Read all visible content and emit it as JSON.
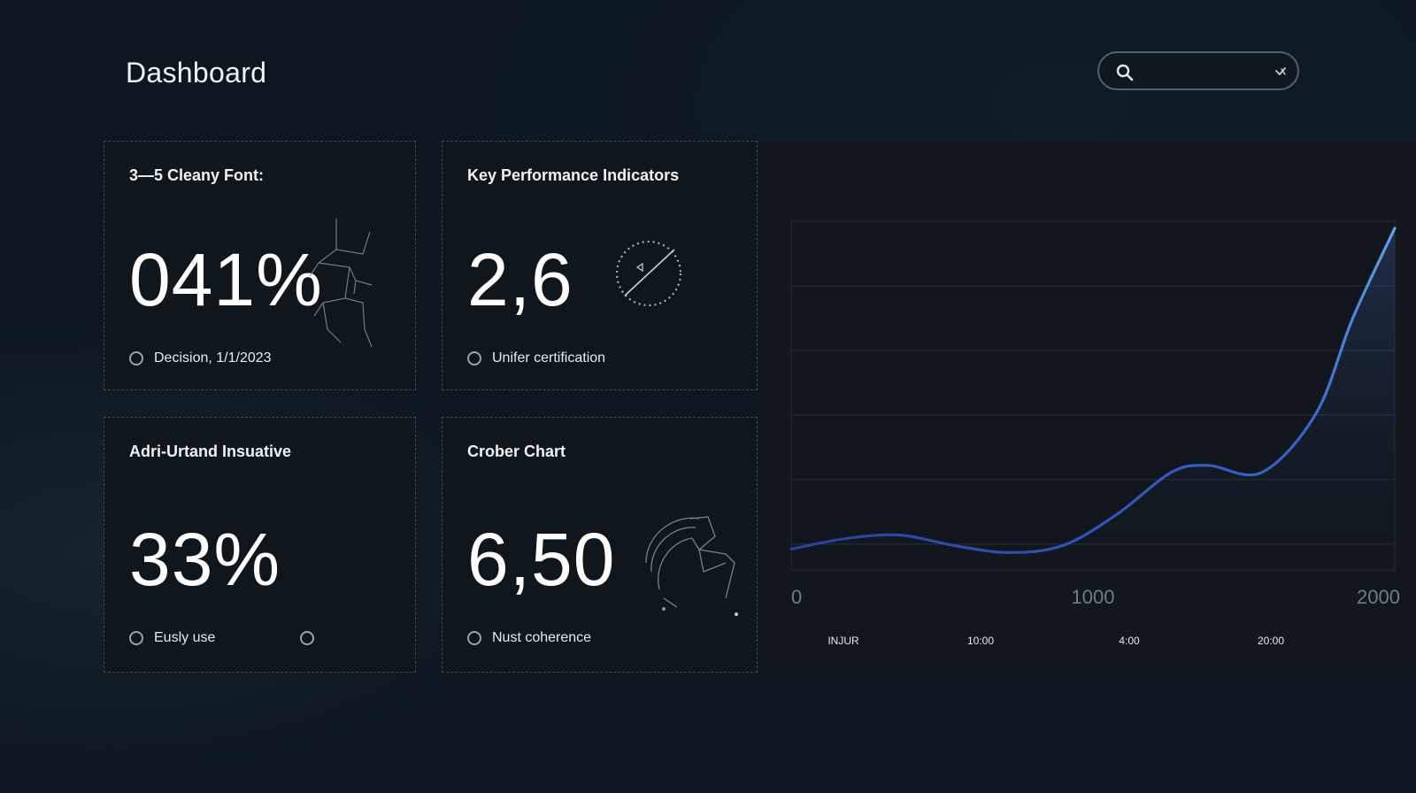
{
  "header": {
    "title": "Dashboard",
    "search": {
      "placeholder": "",
      "value": ""
    }
  },
  "cards": [
    {
      "title": "3—5 Cleany Font:",
      "value": "041%",
      "footer": "Decision, 1/1/2023"
    },
    {
      "title": "Key Performance Indicators",
      "value": "2,6",
      "footer": "Unifer certification"
    },
    {
      "title": "Adri-Urtand Insuative",
      "value": "33%",
      "footer": "Eusly use"
    },
    {
      "title": "Crober Chart",
      "value": "6,50",
      "footer": "Nust coherence"
    }
  ],
  "colors": {
    "background": "#0e171f",
    "card_border": "#3d4851",
    "line_start": "#2b3f9e",
    "line_end": "#5fa3e6"
  },
  "chart_data": {
    "type": "area",
    "x": [
      0,
      180,
      360,
      540,
      720,
      900,
      1080,
      1260,
      1380,
      1560,
      1740,
      1860,
      2000
    ],
    "values": [
      0.06,
      0.09,
      0.1,
      0.07,
      0.05,
      0.07,
      0.16,
      0.28,
      0.3,
      0.28,
      0.45,
      0.72,
      0.98
    ],
    "xlim": [
      0,
      2000
    ],
    "ylim": [
      0,
      1
    ],
    "x_tick_labels": [
      "0",
      "1000",
      "2000"
    ],
    "secondary_x_labels": [
      "INJUR",
      "10:00",
      "4:00",
      "20:00"
    ],
    "grid": true,
    "legend": "none"
  }
}
